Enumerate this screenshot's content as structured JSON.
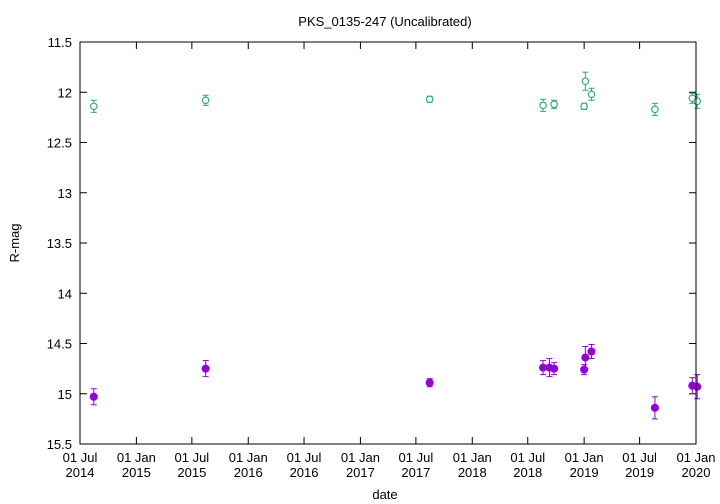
{
  "chart_data": {
    "type": "scatter",
    "title": "PKS_0135-247 (Uncalibrated)",
    "xlabel": "date",
    "ylabel": "R-mag",
    "x_axis": "date",
    "y_inverted": true,
    "ylim": [
      15.5,
      11.5
    ],
    "xlim": [
      "2014-07-01",
      "2020-01-01"
    ],
    "grid": false,
    "legend": "none",
    "y_ticks": [
      "11.5",
      "12",
      "12.5",
      "13",
      "13.5",
      "14",
      "14.5",
      "15",
      "15.5"
    ],
    "x_ticks": [
      {
        "date": "2014-07-01",
        "line1": "01 Jul",
        "line2": "2014"
      },
      {
        "date": "2015-01-01",
        "line1": "01 Jan",
        "line2": "2015"
      },
      {
        "date": "2015-07-01",
        "line1": "01 Jul",
        "line2": "2015"
      },
      {
        "date": "2016-01-01",
        "line1": "01 Jan",
        "line2": "2016"
      },
      {
        "date": "2016-07-01",
        "line1": "01 Jul",
        "line2": "2016"
      },
      {
        "date": "2017-01-01",
        "line1": "01 Jan",
        "line2": "2017"
      },
      {
        "date": "2017-07-01",
        "line1": "01 Jul",
        "line2": "2017"
      },
      {
        "date": "2018-01-01",
        "line1": "01 Jan",
        "line2": "2018"
      },
      {
        "date": "2018-07-01",
        "line1": "01 Jul",
        "line2": "2018"
      },
      {
        "date": "2019-01-01",
        "line1": "01 Jan",
        "line2": "2019"
      },
      {
        "date": "2019-07-01",
        "line1": "01 Jul",
        "line2": "2019"
      },
      {
        "date": "2020-01-01",
        "line1": "01 Jan",
        "line2": "2020"
      }
    ],
    "series": [
      {
        "color": "#2aa57a",
        "marker": "open-circle",
        "points": [
          {
            "x": "2014-08-15",
            "y": 12.14,
            "err": 0.06
          },
          {
            "x": "2015-08-15",
            "y": 12.08,
            "err": 0.05
          },
          {
            "x": "2017-08-15",
            "y": 12.07,
            "err": 0.03
          },
          {
            "x": "2018-08-20",
            "y": 12.13,
            "err": 0.06
          },
          {
            "x": "2018-09-25",
            "y": 12.12,
            "err": 0.04
          },
          {
            "x": "2019-01-01",
            "y": 12.14,
            "err": 0.03
          },
          {
            "x": "2019-01-05",
            "y": 11.89,
            "err": 0.09
          },
          {
            "x": "2019-01-25",
            "y": 12.02,
            "err": 0.06
          },
          {
            "x": "2019-08-20",
            "y": 12.17,
            "err": 0.06
          },
          {
            "x": "2019-12-20",
            "y": 12.06,
            "err": 0.05
          },
          {
            "x": "2020-01-05",
            "y": 12.09,
            "err": 0.07
          }
        ]
      },
      {
        "color": "#9400d3",
        "marker": "filled-circle",
        "points": [
          {
            "x": "2014-08-15",
            "y": 15.03,
            "err": 0.08
          },
          {
            "x": "2015-08-15",
            "y": 14.75,
            "err": 0.08
          },
          {
            "x": "2017-08-15",
            "y": 14.89,
            "err": 0.04
          },
          {
            "x": "2018-08-20",
            "y": 14.74,
            "err": 0.07
          },
          {
            "x": "2018-09-10",
            "y": 14.74,
            "err": 0.09
          },
          {
            "x": "2018-09-25",
            "y": 14.75,
            "err": 0.06
          },
          {
            "x": "2019-01-01",
            "y": 14.76,
            "err": 0.05
          },
          {
            "x": "2019-01-05",
            "y": 14.64,
            "err": 0.11
          },
          {
            "x": "2019-01-25",
            "y": 14.58,
            "err": 0.07
          },
          {
            "x": "2019-08-20",
            "y": 15.14,
            "err": 0.11
          },
          {
            "x": "2019-12-20",
            "y": 14.92,
            "err": 0.08
          },
          {
            "x": "2020-01-05",
            "y": 14.93,
            "err": 0.12
          }
        ]
      }
    ]
  }
}
